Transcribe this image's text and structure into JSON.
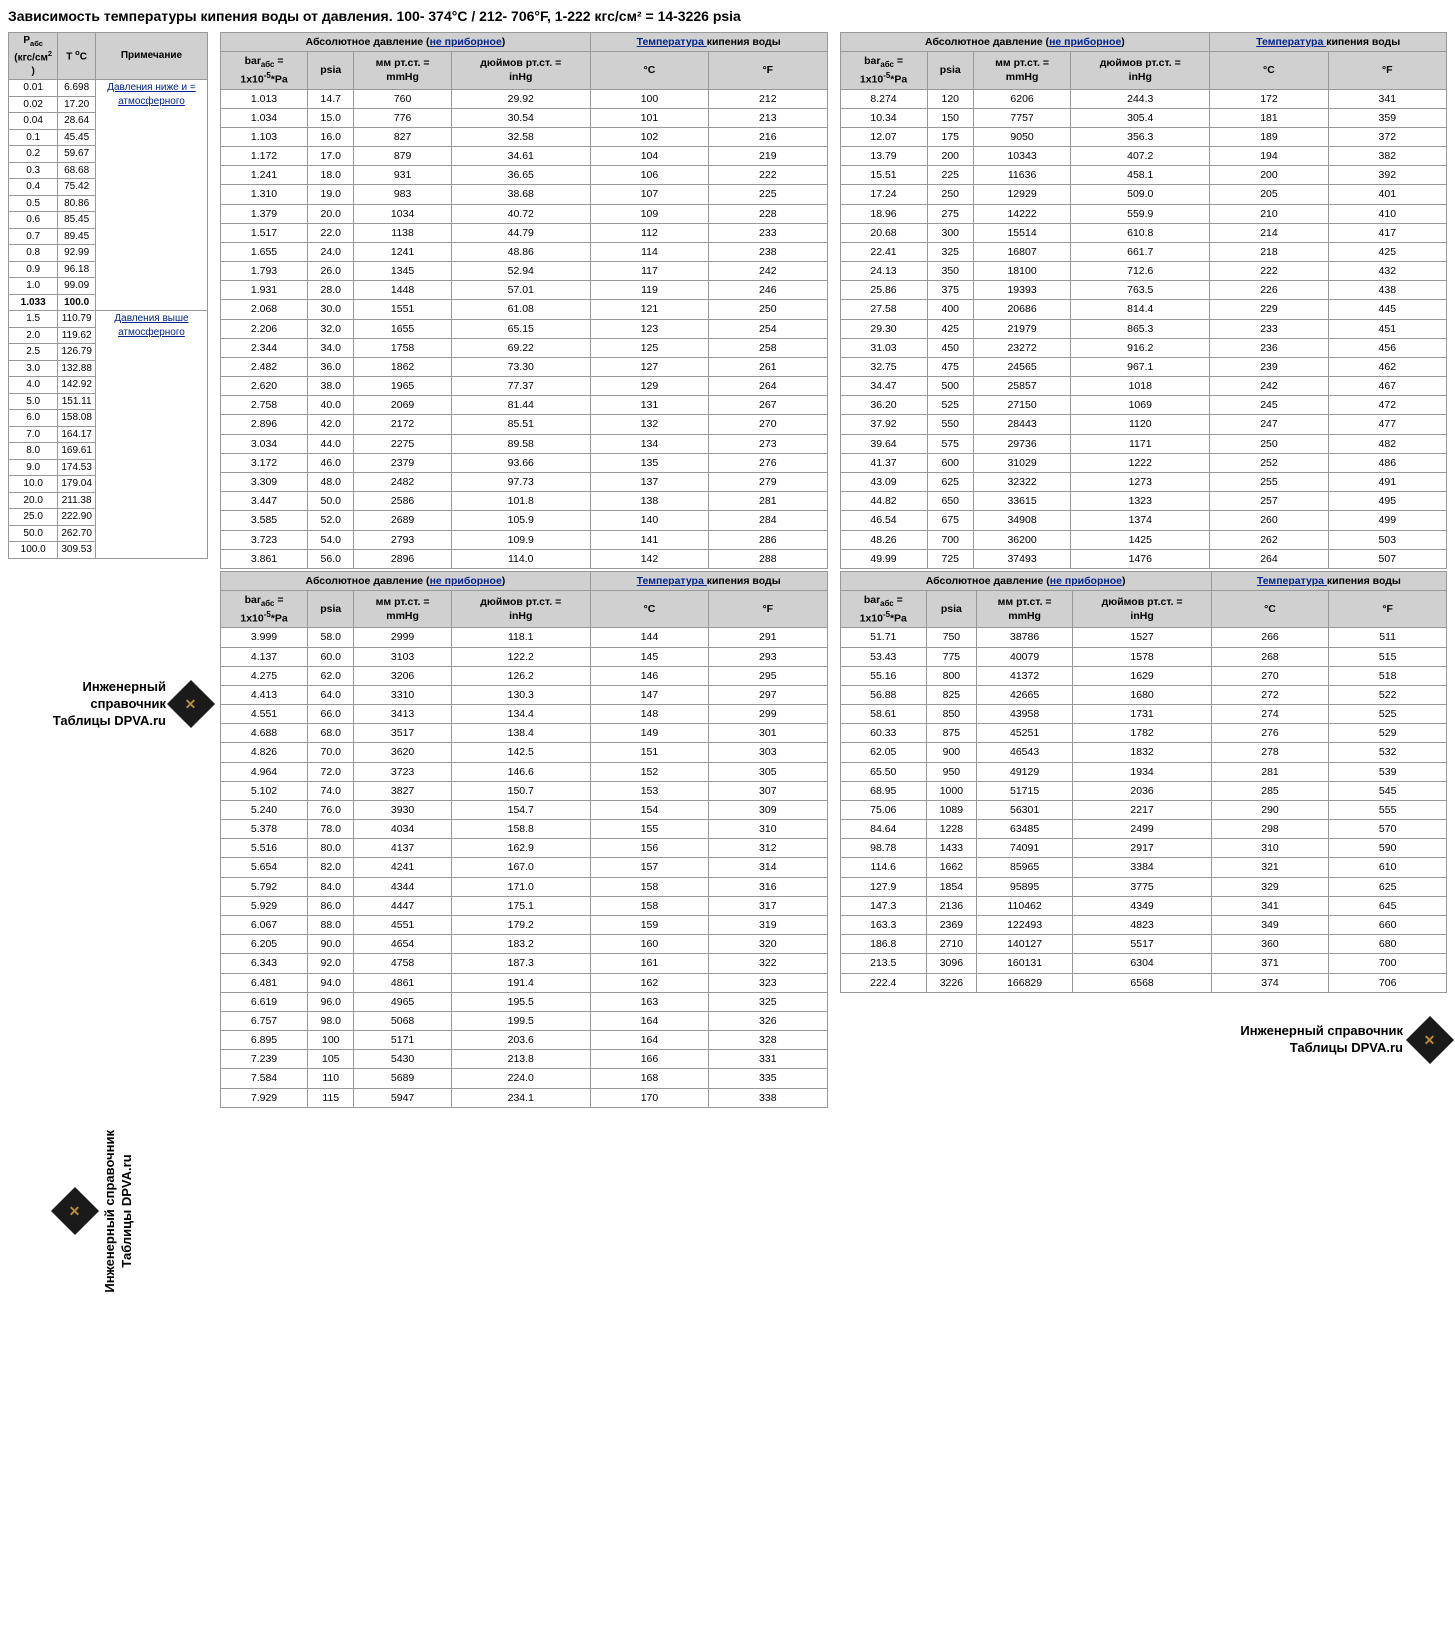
{
  "title": "Зависимость температуры кипения воды от давления. 100-  374°C / 212- 706°F, 1-222 кгс/см² = 14-3226 psia",
  "brand_line1": "Инженерный справочник",
  "brand_line2": "Таблицы DPVA.ru",
  "left_table": {
    "headers": [
      "P_абс (кгс/см² )",
      "T °C",
      "Примечание"
    ],
    "note_below": "Давления ниже и = атмосферного",
    "note_above": "Давления выше атмосферного",
    "below": [
      [
        "0.01",
        "6.698"
      ],
      [
        "0.02",
        "17.20"
      ],
      [
        "0.04",
        "28.64"
      ],
      [
        "0.1",
        "45.45"
      ],
      [
        "0.2",
        "59.67"
      ],
      [
        "0.3",
        "68.68"
      ],
      [
        "0.4",
        "75.42"
      ],
      [
        "0.5",
        "80.86"
      ],
      [
        "0.6",
        "85.45"
      ],
      [
        "0.7",
        "89.45"
      ],
      [
        "0.8",
        "92.99"
      ],
      [
        "0.9",
        "96.18"
      ],
      [
        "1.0",
        "99.09"
      ],
      [
        "1.033",
        "100.0"
      ]
    ],
    "above": [
      [
        "1.5",
        "110.79"
      ],
      [
        "2.0",
        "119.62"
      ],
      [
        "2.5",
        "126.79"
      ],
      [
        "3.0",
        "132.88"
      ],
      [
        "4.0",
        "142.92"
      ],
      [
        "5.0",
        "151.11"
      ],
      [
        "6.0",
        "158.08"
      ],
      [
        "7.0",
        "164.17"
      ],
      [
        "8.0",
        "169.61"
      ],
      [
        "9.0",
        "174.53"
      ],
      [
        "10.0",
        "179.04"
      ],
      [
        "20.0",
        "211.38"
      ],
      [
        "25.0",
        "222.90"
      ],
      [
        "50.0",
        "262.70"
      ],
      [
        "100.0",
        "309.53"
      ]
    ]
  },
  "main_header": {
    "pressure_group": "Абсолютное давление (",
    "pressure_link": "не приборное",
    "pressure_close": ")",
    "temp_link": "Температура ",
    "temp_tail": "кипения воды",
    "col_bar_l1": "bar_абс =",
    "col_bar_l2": "1x10⁻⁵*Pa",
    "col_psia": "psia",
    "col_mmhg_l1": "мм рт.ст. =",
    "col_mmhg_l2": "mmHg",
    "col_inhg_l1": "дюймов рт.ст. =",
    "col_inhg_l2": "inHg",
    "col_c": "°C",
    "col_f": "°F"
  },
  "block1": [
    [
      "1.013",
      "14.7",
      "760",
      "29.92",
      "100",
      "212"
    ],
    [
      "1.034",
      "15.0",
      "776",
      "30.54",
      "101",
      "213"
    ],
    [
      "1.103",
      "16.0",
      "827",
      "32.58",
      "102",
      "216"
    ],
    [
      "1.172",
      "17.0",
      "879",
      "34.61",
      "104",
      "219"
    ],
    [
      "1.241",
      "18.0",
      "931",
      "36.65",
      "106",
      "222"
    ],
    [
      "1.310",
      "19.0",
      "983",
      "38.68",
      "107",
      "225"
    ],
    [
      "1.379",
      "20.0",
      "1034",
      "40.72",
      "109",
      "228"
    ],
    [
      "1.517",
      "22.0",
      "1138",
      "44.79",
      "112",
      "233"
    ],
    [
      "1.655",
      "24.0",
      "1241",
      "48.86",
      "114",
      "238"
    ],
    [
      "1.793",
      "26.0",
      "1345",
      "52.94",
      "117",
      "242"
    ],
    [
      "1.931",
      "28.0",
      "1448",
      "57.01",
      "119",
      "246"
    ],
    [
      "2.068",
      "30.0",
      "1551",
      "61.08",
      "121",
      "250"
    ],
    [
      "2.206",
      "32.0",
      "1655",
      "65.15",
      "123",
      "254"
    ],
    [
      "2.344",
      "34.0",
      "1758",
      "69.22",
      "125",
      "258"
    ],
    [
      "2.482",
      "36.0",
      "1862",
      "73.30",
      "127",
      "261"
    ],
    [
      "2.620",
      "38.0",
      "1965",
      "77.37",
      "129",
      "264"
    ],
    [
      "2.758",
      "40.0",
      "2069",
      "81.44",
      "131",
      "267"
    ],
    [
      "2.896",
      "42.0",
      "2172",
      "85.51",
      "132",
      "270"
    ],
    [
      "3.034",
      "44.0",
      "2275",
      "89.58",
      "134",
      "273"
    ],
    [
      "3.172",
      "46.0",
      "2379",
      "93.66",
      "135",
      "276"
    ],
    [
      "3.309",
      "48.0",
      "2482",
      "97.73",
      "137",
      "279"
    ],
    [
      "3.447",
      "50.0",
      "2586",
      "101.8",
      "138",
      "281"
    ],
    [
      "3.585",
      "52.0",
      "2689",
      "105.9",
      "140",
      "284"
    ],
    [
      "3.723",
      "54.0",
      "2793",
      "109.9",
      "141",
      "286"
    ],
    [
      "3.861",
      "56.0",
      "2896",
      "114.0",
      "142",
      "288"
    ]
  ],
  "block2": [
    [
      "3.999",
      "58.0",
      "2999",
      "118.1",
      "144",
      "291"
    ],
    [
      "4.137",
      "60.0",
      "3103",
      "122.2",
      "145",
      "293"
    ],
    [
      "4.275",
      "62.0",
      "3206",
      "126.2",
      "146",
      "295"
    ],
    [
      "4.413",
      "64.0",
      "3310",
      "130.3",
      "147",
      "297"
    ],
    [
      "4.551",
      "66.0",
      "3413",
      "134.4",
      "148",
      "299"
    ],
    [
      "4.688",
      "68.0",
      "3517",
      "138.4",
      "149",
      "301"
    ],
    [
      "4.826",
      "70.0",
      "3620",
      "142.5",
      "151",
      "303"
    ],
    [
      "4.964",
      "72.0",
      "3723",
      "146.6",
      "152",
      "305"
    ],
    [
      "5.102",
      "74.0",
      "3827",
      "150.7",
      "153",
      "307"
    ],
    [
      "5.240",
      "76.0",
      "3930",
      "154.7",
      "154",
      "309"
    ],
    [
      "5.378",
      "78.0",
      "4034",
      "158.8",
      "155",
      "310"
    ],
    [
      "5.516",
      "80.0",
      "4137",
      "162.9",
      "156",
      "312"
    ],
    [
      "5.654",
      "82.0",
      "4241",
      "167.0",
      "157",
      "314"
    ],
    [
      "5.792",
      "84.0",
      "4344",
      "171.0",
      "158",
      "316"
    ],
    [
      "5.929",
      "86.0",
      "4447",
      "175.1",
      "158",
      "317"
    ],
    [
      "6.067",
      "88.0",
      "4551",
      "179.2",
      "159",
      "319"
    ],
    [
      "6.205",
      "90.0",
      "4654",
      "183.2",
      "160",
      "320"
    ],
    [
      "6.343",
      "92.0",
      "4758",
      "187.3",
      "161",
      "322"
    ],
    [
      "6.481",
      "94.0",
      "4861",
      "191.4",
      "162",
      "323"
    ],
    [
      "6.619",
      "96.0",
      "4965",
      "195.5",
      "163",
      "325"
    ],
    [
      "6.757",
      "98.0",
      "5068",
      "199.5",
      "164",
      "326"
    ],
    [
      "6.895",
      "100",
      "5171",
      "203.6",
      "164",
      "328"
    ],
    [
      "7.239",
      "105",
      "5430",
      "213.8",
      "166",
      "331"
    ],
    [
      "7.584",
      "110",
      "5689",
      "224.0",
      "168",
      "335"
    ],
    [
      "7.929",
      "115",
      "5947",
      "234.1",
      "170",
      "338"
    ]
  ],
  "block3": [
    [
      "8.274",
      "120",
      "6206",
      "244.3",
      "172",
      "341"
    ],
    [
      "10.34",
      "150",
      "7757",
      "305.4",
      "181",
      "359"
    ],
    [
      "12.07",
      "175",
      "9050",
      "356.3",
      "189",
      "372"
    ],
    [
      "13.79",
      "200",
      "10343",
      "407.2",
      "194",
      "382"
    ],
    [
      "15.51",
      "225",
      "11636",
      "458.1",
      "200",
      "392"
    ],
    [
      "17.24",
      "250",
      "12929",
      "509.0",
      "205",
      "401"
    ],
    [
      "18.96",
      "275",
      "14222",
      "559.9",
      "210",
      "410"
    ],
    [
      "20.68",
      "300",
      "15514",
      "610.8",
      "214",
      "417"
    ],
    [
      "22.41",
      "325",
      "16807",
      "661.7",
      "218",
      "425"
    ],
    [
      "24.13",
      "350",
      "18100",
      "712.6",
      "222",
      "432"
    ],
    [
      "25.86",
      "375",
      "19393",
      "763.5",
      "226",
      "438"
    ],
    [
      "27.58",
      "400",
      "20686",
      "814.4",
      "229",
      "445"
    ],
    [
      "29.30",
      "425",
      "21979",
      "865.3",
      "233",
      "451"
    ],
    [
      "31.03",
      "450",
      "23272",
      "916.2",
      "236",
      "456"
    ],
    [
      "32.75",
      "475",
      "24565",
      "967.1",
      "239",
      "462"
    ],
    [
      "34.47",
      "500",
      "25857",
      "1018",
      "242",
      "467"
    ],
    [
      "36.20",
      "525",
      "27150",
      "1069",
      "245",
      "472"
    ],
    [
      "37.92",
      "550",
      "28443",
      "1120",
      "247",
      "477"
    ],
    [
      "39.64",
      "575",
      "29736",
      "1171",
      "250",
      "482"
    ],
    [
      "41.37",
      "600",
      "31029",
      "1222",
      "252",
      "486"
    ],
    [
      "43.09",
      "625",
      "32322",
      "1273",
      "255",
      "491"
    ],
    [
      "44.82",
      "650",
      "33615",
      "1323",
      "257",
      "495"
    ],
    [
      "46.54",
      "675",
      "34908",
      "1374",
      "260",
      "499"
    ],
    [
      "48.26",
      "700",
      "36200",
      "1425",
      "262",
      "503"
    ],
    [
      "49.99",
      "725",
      "37493",
      "1476",
      "264",
      "507"
    ]
  ],
  "block4": [
    [
      "51.71",
      "750",
      "38786",
      "1527",
      "266",
      "511"
    ],
    [
      "53.43",
      "775",
      "40079",
      "1578",
      "268",
      "515"
    ],
    [
      "55.16",
      "800",
      "41372",
      "1629",
      "270",
      "518"
    ],
    [
      "56.88",
      "825",
      "42665",
      "1680",
      "272",
      "522"
    ],
    [
      "58.61",
      "850",
      "43958",
      "1731",
      "274",
      "525"
    ],
    [
      "60.33",
      "875",
      "45251",
      "1782",
      "276",
      "529"
    ],
    [
      "62.05",
      "900",
      "46543",
      "1832",
      "278",
      "532"
    ],
    [
      "65.50",
      "950",
      "49129",
      "1934",
      "281",
      "539"
    ],
    [
      "68.95",
      "1000",
      "51715",
      "2036",
      "285",
      "545"
    ],
    [
      "75.06",
      "1089",
      "56301",
      "2217",
      "290",
      "555"
    ],
    [
      "84.64",
      "1228",
      "63485",
      "2499",
      "298",
      "570"
    ],
    [
      "98.78",
      "1433",
      "74091",
      "2917",
      "310",
      "590"
    ],
    [
      "114.6",
      "1662",
      "85965",
      "3384",
      "321",
      "610"
    ],
    [
      "127.9",
      "1854",
      "95895",
      "3775",
      "329",
      "625"
    ],
    [
      "147.3",
      "2136",
      "110462",
      "4349",
      "341",
      "645"
    ],
    [
      "163.3",
      "2369",
      "122493",
      "4823",
      "349",
      "660"
    ],
    [
      "186.8",
      "2710",
      "140127",
      "5517",
      "360",
      "680"
    ],
    [
      "213.5",
      "3096",
      "160131",
      "6304",
      "371",
      "700"
    ],
    [
      "222.4",
      "3226",
      "166829",
      "6568",
      "374",
      "706"
    ]
  ]
}
